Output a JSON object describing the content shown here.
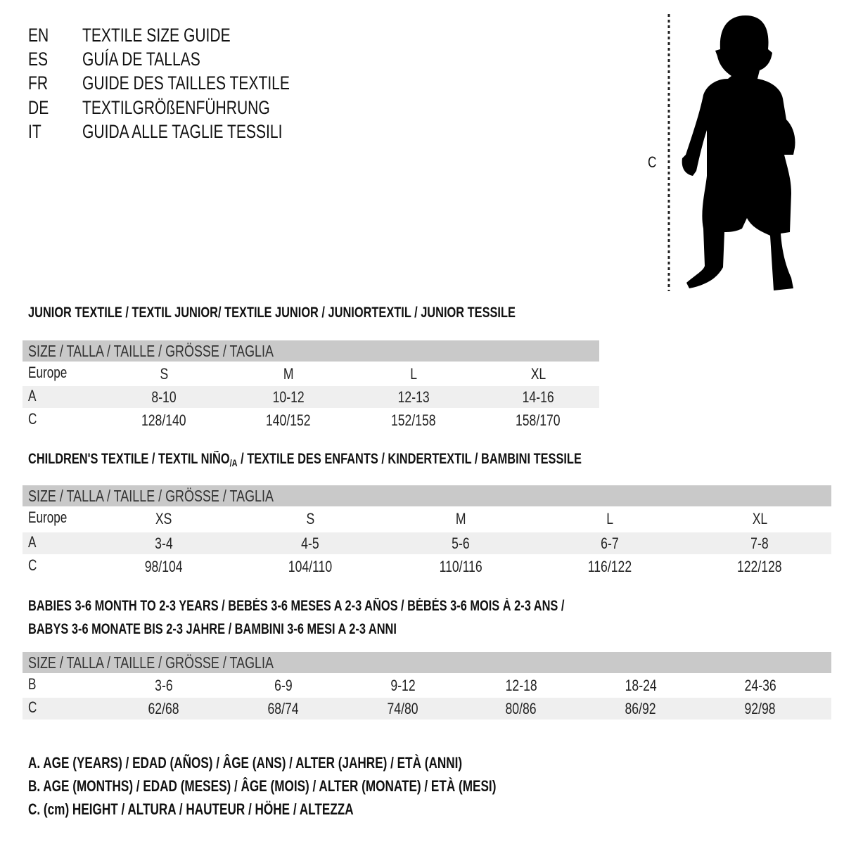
{
  "languages": [
    {
      "code": "EN",
      "title": "TEXTILE SIZE GUIDE"
    },
    {
      "code": "ES",
      "title": "GUÍA DE TALLAS"
    },
    {
      "code": "FR",
      "title": "GUIDE DES TAILLES TEXTILE"
    },
    {
      "code": "DE",
      "title": "TEXTILGRÖßENFÜHRUNG"
    },
    {
      "code": "IT",
      "title": "GUIDA ALLE TAGLIE TESSILI"
    }
  ],
  "figure": {
    "measure_label": "C"
  },
  "junior": {
    "heading": "JUNIOR TEXTILE / TEXTIL JUNIOR/ TEXTILE JUNIOR / JUNIORTEXTIL / JUNIOR TESSILE",
    "size_header": "SIZE / TALLA / TAILLE / GRÖSSE / TAGLIA",
    "rows": [
      {
        "label": "Europe",
        "values": [
          "S",
          "M",
          "L",
          "XL"
        ]
      },
      {
        "label": "A",
        "values": [
          "8-10",
          "10-12",
          "12-13",
          "14-16"
        ]
      },
      {
        "label": "C",
        "values": [
          "128/140",
          "140/152",
          "152/158",
          "158/170"
        ]
      }
    ]
  },
  "children": {
    "heading_pre": "CHILDREN'S TEXTILE / TEXTIL NIÑO",
    "heading_sub": "/A",
    "heading_post": " / TEXTILE DES ENFANTS / KINDERTEXTIL / BAMBINI TESSILE",
    "size_header": "SIZE / TALLA / TAILLE / GRÖSSE / TAGLIA",
    "rows": [
      {
        "label": "Europe",
        "values": [
          "XS",
          "S",
          "M",
          "L",
          "XL"
        ]
      },
      {
        "label": "A",
        "values": [
          "3-4",
          "4-5",
          "5-6",
          "6-7",
          "7-8"
        ]
      },
      {
        "label": "C",
        "values": [
          "98/104",
          "104/110",
          "110/116",
          "116/122",
          "122/128"
        ]
      }
    ]
  },
  "babies": {
    "heading_line1": "BABIES 3-6 MONTH TO 2-3 YEARS / BEBÉS 3-6 MESES A 2-3 AÑOS / BÉBÉS 3-6 MOIS À 2-3 ANS /",
    "heading_line2": "BABYS 3-6 MONATE BIS 2-3 JAHRE / BAMBINI 3-6 MESI A 2-3 ANNI",
    "size_header": "SIZE / TALLA / TAILLE / GRÖSSE / TAGLIA",
    "rows": [
      {
        "label": "B",
        "values": [
          "3-6",
          "6-9",
          "9-12",
          "12-18",
          "18-24",
          "24-36"
        ]
      },
      {
        "label": "C",
        "values": [
          "62/68",
          "68/74",
          "74/80",
          "80/86",
          "86/92",
          "92/98"
        ]
      }
    ]
  },
  "legend": [
    "A. AGE (YEARS) / EDAD (AÑOS) / ÂGE (ANS) / ALTER (JAHRE) / ETÀ (ANNI)",
    "B. AGE (MONTHS) / EDAD (MESES) / ÂGE (MOIS) / ALTER (MONATE) / ETÀ (MESI)",
    "C. (cm) HEIGHT / ALTURA / HAUTEUR / HÖHE / ALTEZZA"
  ],
  "colors": {
    "header_bar": "#c9c9c9",
    "shaded_row": "#efefef",
    "text": "#111111"
  }
}
